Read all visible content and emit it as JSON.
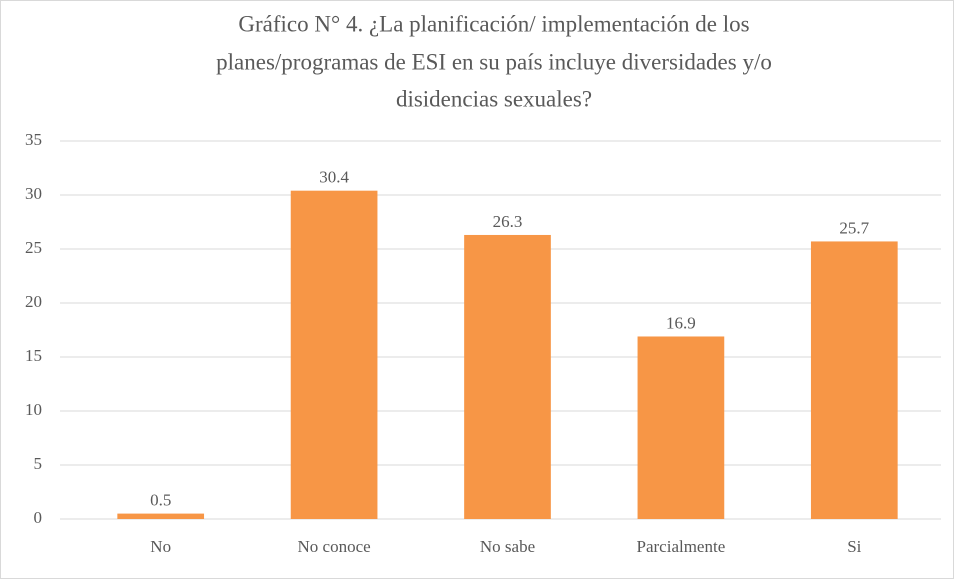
{
  "chart_data": {
    "type": "bar",
    "title": [
      "Gráfico N° 4. ¿La planificación/ implementación de los",
      "planes/programas de ESI en su país incluye diversidades y/o",
      "disidencias sexuales?"
    ],
    "categories": [
      "No",
      "No conoce",
      "No sabe",
      "Parcialmente",
      "Si"
    ],
    "values": [
      0.5,
      30.4,
      26.3,
      16.9,
      25.7
    ],
    "color": "#f79646",
    "ylim": [
      0,
      35
    ],
    "yticks": [
      0,
      5,
      10,
      15,
      20,
      25,
      30,
      35
    ],
    "grid": true
  }
}
